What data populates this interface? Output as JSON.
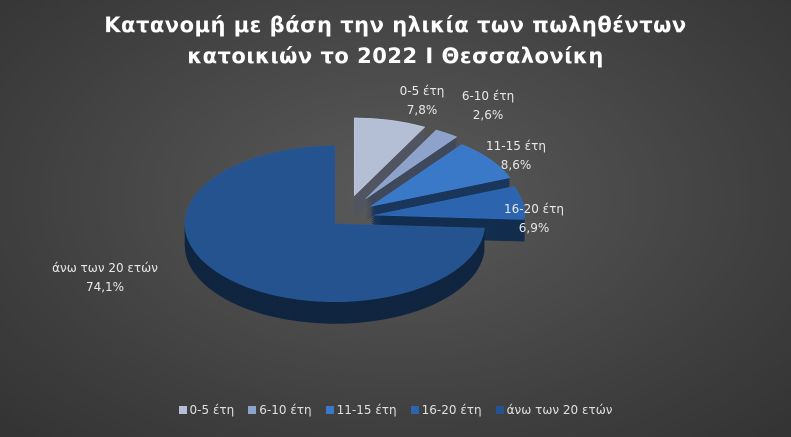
{
  "chart_data": {
    "type": "pie",
    "title_line1": "Κατανομή με βάση την ηλικία των πωληθέντων",
    "title_line2": "κατοικιών το 2022 Ι Θεσσαλονίκη",
    "categories": [
      "0-5 έτη",
      "6-10 έτη",
      "11-15 έτη",
      "16-20 έτη",
      "άνω των 20 ετών"
    ],
    "values": [
      7.8,
      2.6,
      8.6,
      6.9,
      74.1
    ],
    "value_labels": [
      "7,8%",
      "2,6%",
      "8,6%",
      "6,9%",
      "74,1%"
    ],
    "colors": [
      "#b4bfd6",
      "#8ea3cc",
      "#3a78c8",
      "#2c64b0",
      "#24538f"
    ],
    "exploded": true,
    "three_d": true,
    "legend_position": "bottom"
  }
}
